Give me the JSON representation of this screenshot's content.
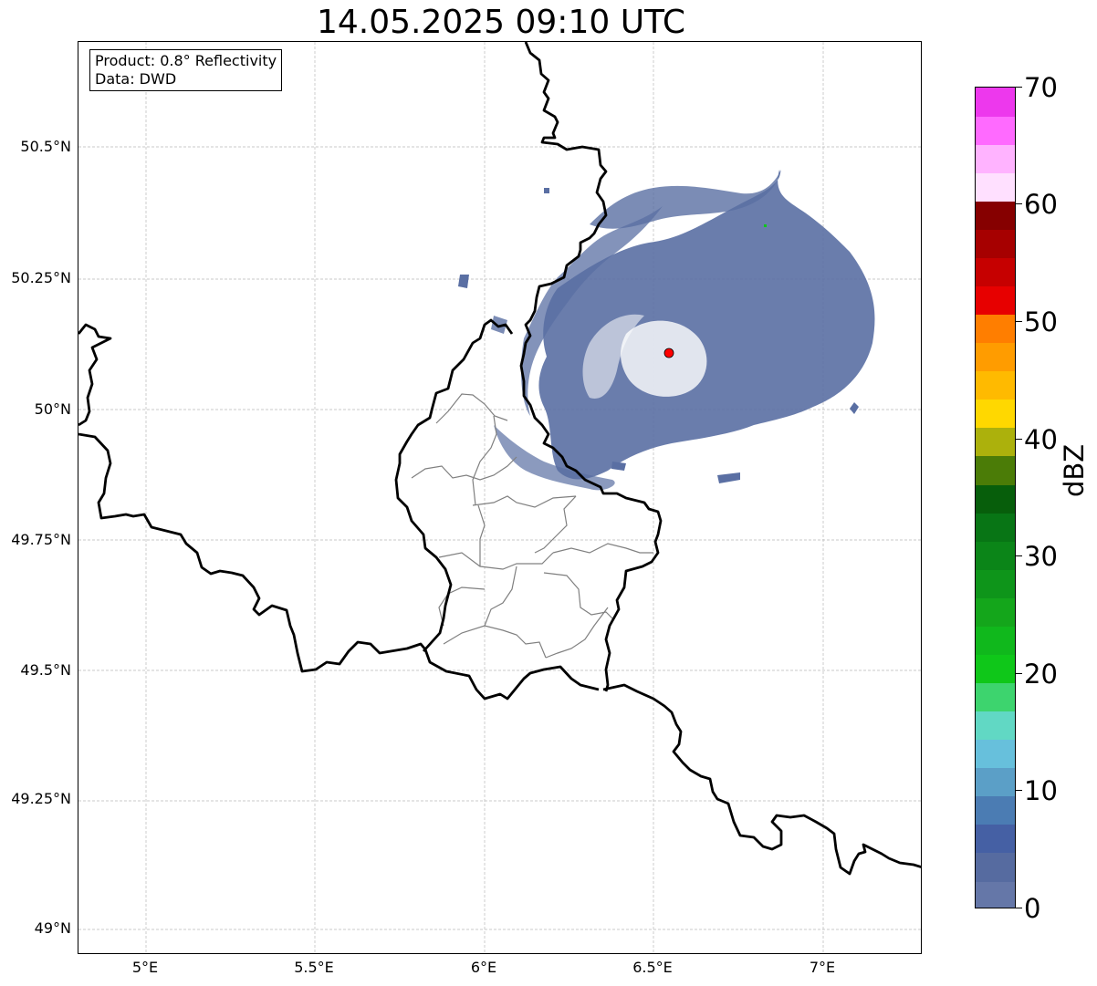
{
  "title": "14.05.2025 09:10 UTC",
  "info": {
    "product": "Product: 0.8° Reflectivity",
    "data": "Data: DWD"
  },
  "axes": {
    "lat_ticks": [
      {
        "value": 50.5,
        "label": "50.5°N"
      },
      {
        "value": 50.25,
        "label": "50.25°N"
      },
      {
        "value": 50.0,
        "label": "50°N"
      },
      {
        "value": 49.75,
        "label": "49.75°N"
      },
      {
        "value": 49.5,
        "label": "49.5°N"
      },
      {
        "value": 49.25,
        "label": "49.25°N"
      },
      {
        "value": 49.0,
        "label": "49°N"
      }
    ],
    "lon_ticks": [
      {
        "value": 5.0,
        "label": "5°E"
      },
      {
        "value": 5.5,
        "label": "5.5°E"
      },
      {
        "value": 6.0,
        "label": "6°E"
      },
      {
        "value": 6.5,
        "label": "6.5°E"
      },
      {
        "value": 7.0,
        "label": "7°E"
      }
    ],
    "lon_range": [
      4.8,
      7.3
    ],
    "lat_range": [
      48.95,
      50.7
    ],
    "grid": true
  },
  "radar_site": {
    "lon": 6.55,
    "lat": 50.11,
    "color": "#ff0000"
  },
  "colorbar": {
    "unit": "dBZ",
    "range": [
      0,
      70
    ],
    "tick_labels": [
      "0",
      "10",
      "20",
      "30",
      "40",
      "50",
      "60",
      "70"
    ],
    "colors": [
      "#6577a8",
      "#566ba0",
      "#4560a4",
      "#4b7cb3",
      "#5b9fc7",
      "#67c0dc",
      "#61d8c4",
      "#3dd46e",
      "#0fc719",
      "#10b81c",
      "#14a61b",
      "#0e951a",
      "#0b8518",
      "#087515",
      "#075e0b",
      "#4b7c07",
      "#acb10c",
      "#ffd800",
      "#ffba00",
      "#ff9c00",
      "#ff7e00",
      "#e70000",
      "#c60000",
      "#a60000",
      "#860000",
      "#ffe0ff",
      "#ffb3ff",
      "#ff6aff",
      "#ed38ed"
    ]
  }
}
